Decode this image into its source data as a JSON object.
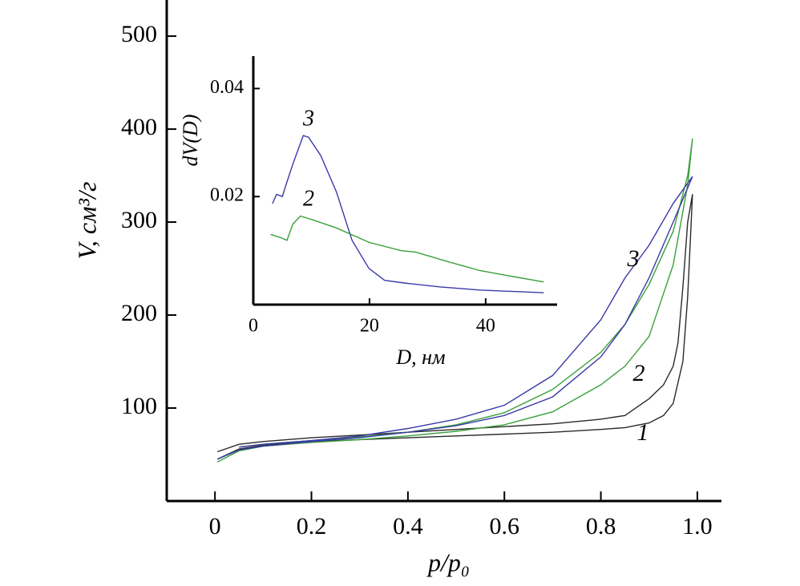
{
  "chart_data": [
    {
      "type": "line",
      "x_label": "p/p₀",
      "y_label": "V, см³/г",
      "xlim": [
        -0.1,
        1.05
      ],
      "ylim": [
        0,
        538
      ],
      "xticks": [
        0,
        0.2,
        0.4,
        0.6,
        0.8,
        {
          "value": 1,
          "label": "1.0"
        }
      ],
      "yticks": [
        100,
        200,
        300,
        400,
        500
      ],
      "series": [
        {
          "name": "1",
          "color": "#2a2a2a",
          "x": [
            0.005,
            0.05,
            0.1,
            0.2,
            0.3,
            0.4,
            0.5,
            0.6,
            0.7,
            0.8,
            0.85,
            0.9,
            0.93,
            0.95,
            0.97,
            0.98,
            0.99,
            0.98,
            0.97,
            0.96,
            0.95,
            0.93,
            0.9,
            0.85,
            0.8,
            0.7,
            0.6,
            0.5,
            0.4,
            0.3,
            0.2,
            0.1,
            0.05,
            0.005
          ],
          "values": [
            45,
            56,
            60,
            64,
            66,
            68,
            70,
            72,
            74,
            77,
            79,
            84,
            92,
            105,
            150,
            220,
            330,
            300,
            230,
            170,
            145,
            125,
            110,
            92,
            88,
            83,
            80,
            77,
            74,
            71,
            68,
            64,
            61,
            53
          ]
        },
        {
          "name": "2",
          "color": "#3aa03a",
          "x": [
            0.005,
            0.05,
            0.1,
            0.2,
            0.3,
            0.4,
            0.5,
            0.6,
            0.7,
            0.8,
            0.85,
            0.9,
            0.95,
            0.98,
            0.99,
            0.98,
            0.95,
            0.9,
            0.85,
            0.8,
            0.7,
            0.6,
            0.5,
            0.4,
            0.3,
            0.2,
            0.1,
            0.05
          ],
          "values": [
            42,
            54,
            59,
            63,
            66,
            70,
            75,
            82,
            96,
            125,
            145,
            177,
            254,
            340,
            390,
            350,
            290,
            233,
            190,
            160,
            120,
            95,
            82,
            74,
            69,
            65,
            61,
            58
          ]
        },
        {
          "name": "3",
          "color": "#3a3aa8",
          "x": [
            0.005,
            0.05,
            0.1,
            0.2,
            0.3,
            0.4,
            0.5,
            0.6,
            0.7,
            0.8,
            0.85,
            0.9,
            0.95,
            0.99,
            0.95,
            0.9,
            0.85,
            0.8,
            0.7,
            0.6,
            0.5,
            0.4,
            0.3,
            0.2,
            0.1,
            0.05
          ],
          "values": [
            45,
            55,
            59,
            64,
            68,
            74,
            81,
            92,
            112,
            155,
            190,
            240,
            300,
            349,
            320,
            275,
            240,
            195,
            135,
            103,
            88,
            78,
            70,
            65,
            61,
            58
          ]
        }
      ]
    },
    {
      "type": "line",
      "x_label": "D, нм",
      "y_label": "dV(D)",
      "xlim": [
        0,
        52.3
      ],
      "ylim": [
        0,
        0.046
      ],
      "xticks": [
        0,
        20,
        40
      ],
      "yticks": [
        0.02,
        0.04
      ],
      "series": [
        {
          "name": "3",
          "color": "#3a3aa8",
          "x": [
            3.3,
            4,
            5,
            5.7,
            6.8,
            8.6,
            9.5,
            11.6,
            14.3,
            17,
            19.9,
            22.6,
            26,
            32,
            39,
            50
          ],
          "values": [
            0.0187,
            0.0204,
            0.02,
            0.0224,
            0.026,
            0.0313,
            0.031,
            0.0276,
            0.0209,
            0.0119,
            0.0067,
            0.0045,
            0.004,
            0.0033,
            0.0027,
            0.0022
          ]
        },
        {
          "name": "2",
          "color": "#3aa03a",
          "x": [
            3,
            4.7,
            5.8,
            6.8,
            8.1,
            10.2,
            14.3,
            20,
            25.4,
            28,
            33.7,
            39,
            44.7,
            50
          ],
          "values": [
            0.013,
            0.0124,
            0.0119,
            0.0149,
            0.0164,
            0.0157,
            0.0142,
            0.0115,
            0.01,
            0.0097,
            0.0079,
            0.0063,
            0.0052,
            0.0042
          ]
        }
      ]
    }
  ]
}
